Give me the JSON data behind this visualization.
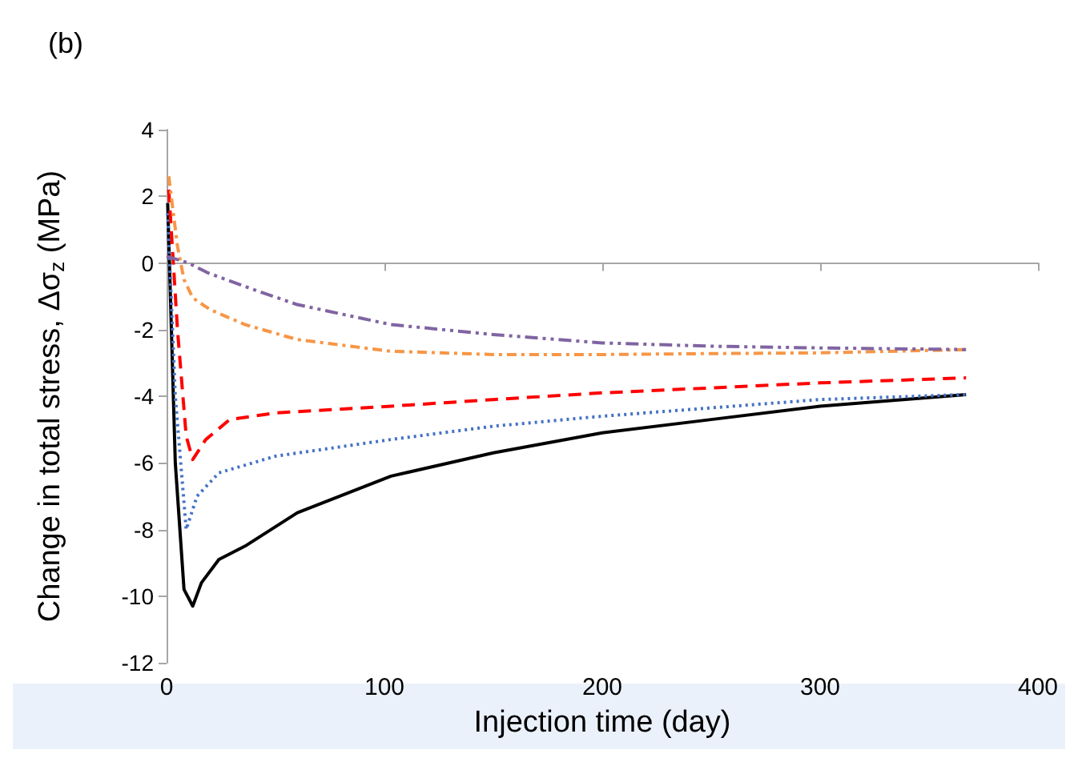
{
  "chart_data": {
    "type": "line",
    "title": "(b)",
    "xlabel": "Injection time (day)",
    "ylabel": "Change in total stress, Δσ$_{z}$ (MPa)",
    "xlim": [
      0,
      400
    ],
    "xticks": [
      0,
      100,
      200,
      300,
      400
    ],
    "ylim": [
      -12,
      4
    ],
    "yticks": [
      -12,
      -10,
      -8,
      -6,
      -4,
      -2,
      0,
      2,
      4
    ],
    "marker": "none",
    "series": [
      {
        "color": "#000000",
        "line_style": "solid",
        "x": [
          0.5,
          4,
          8,
          12,
          16,
          24,
          36,
          60,
          103,
          150,
          200,
          250,
          300,
          367
        ],
        "values": [
          1.8,
          -6,
          -9.8,
          -10.3,
          -9.6,
          -8.9,
          -8.5,
          -7.5,
          -6.4,
          -5.7,
          -5.1,
          -4.7,
          -4.3,
          -3.95
        ]
      },
      {
        "color": "#4472c4",
        "line_style": "dotted",
        "x": [
          0.5,
          4,
          9,
          14,
          24,
          50,
          103,
          150,
          200,
          250,
          300,
          367
        ],
        "values": [
          1.5,
          -4,
          -8,
          -7,
          -6.3,
          -5.8,
          -5.3,
          -4.9,
          -4.6,
          -4.35,
          -4.1,
          -3.95
        ]
      },
      {
        "color": "#ff0000",
        "line_style": "dashed",
        "x": [
          1,
          5,
          9,
          12,
          18,
          29,
          50,
          103,
          150,
          200,
          250,
          300,
          367
        ],
        "values": [
          2.2,
          -2,
          -5.2,
          -5.9,
          -5.3,
          -4.7,
          -4.5,
          -4.3,
          -4.1,
          -3.9,
          -3.75,
          -3.6,
          -3.45
        ]
      },
      {
        "color": "#f79646",
        "line_style": "dashdot",
        "x": [
          1,
          5,
          8,
          12,
          20,
          36,
          60,
          103,
          150,
          200,
          250,
          300,
          367
        ],
        "values": [
          2.6,
          0.5,
          -0.5,
          -1.05,
          -1.4,
          -1.85,
          -2.3,
          -2.65,
          -2.75,
          -2.75,
          -2.72,
          -2.7,
          -2.6
        ]
      },
      {
        "color": "#8064a2",
        "line_style": "dashdotdot",
        "x": [
          0,
          10,
          19,
          40,
          60,
          103,
          150,
          200,
          250,
          300,
          367
        ],
        "values": [
          0.2,
          0,
          -0.3,
          -0.8,
          -1.25,
          -1.85,
          -2.15,
          -2.4,
          -2.5,
          -2.55,
          -2.6
        ]
      }
    ]
  }
}
